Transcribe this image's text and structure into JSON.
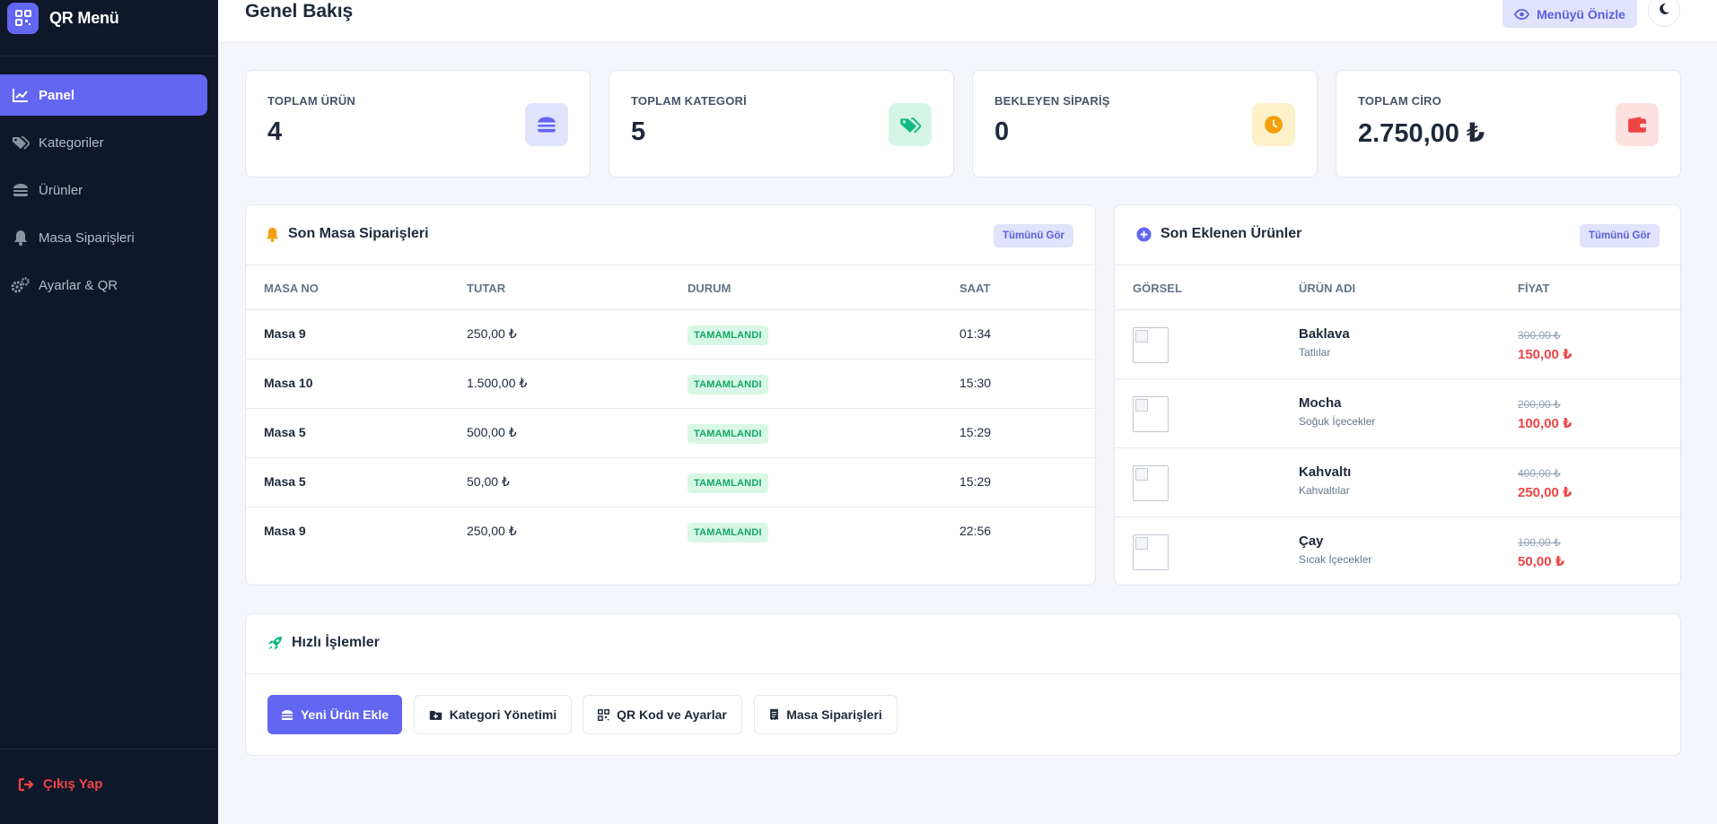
{
  "brand": {
    "name": "QR Menü"
  },
  "sidebar": {
    "items": [
      {
        "label": "Panel",
        "icon": "chart-line-icon",
        "active": true
      },
      {
        "label": "Kategoriler",
        "icon": "tags-icon"
      },
      {
        "label": "Ürünler",
        "icon": "burger-icon"
      },
      {
        "label": "Masa Siparişleri",
        "icon": "bell-icon"
      },
      {
        "label": "Ayarlar & QR",
        "icon": "cogs-icon"
      }
    ],
    "logout_label": "Çıkış Yap"
  },
  "header": {
    "title": "Genel Bakış",
    "preview_label": "Menüyü Önizle"
  },
  "stats": [
    {
      "label": "TOPLAM ÜRÜN",
      "value": "4",
      "icon": "burger-icon",
      "color": "#6366f1",
      "bg": "#e0e3fb"
    },
    {
      "label": "TOPLAM KATEGORİ",
      "value": "5",
      "icon": "tags-icon",
      "color": "#10b981",
      "bg": "#d5f6e6"
    },
    {
      "label": "BEKLEYEN SİPARİŞ",
      "value": "0",
      "icon": "clock-icon",
      "color": "#f59e0b",
      "bg": "#fdf1c9"
    },
    {
      "label": "TOPLAM CİRO",
      "value": "2.750,00 ₺",
      "icon": "wallet-icon",
      "color": "#ef4444",
      "bg": "#fde0e0"
    }
  ],
  "orders": {
    "title": "Son Masa Siparişleri",
    "see_all": "Tümünü Gör",
    "columns": [
      "MASA NO",
      "TUTAR",
      "DURUM",
      "SAAT"
    ],
    "rows": [
      {
        "table": "Masa 9",
        "amount": "250,00 ₺",
        "status": "TAMAMLANDI",
        "time": "01:34"
      },
      {
        "table": "Masa 10",
        "amount": "1.500,00 ₺",
        "status": "TAMAMLANDI",
        "time": "15:30"
      },
      {
        "table": "Masa 5",
        "amount": "500,00 ₺",
        "status": "TAMAMLANDI",
        "time": "15:29"
      },
      {
        "table": "Masa 5",
        "amount": "50,00 ₺",
        "status": "TAMAMLANDI",
        "time": "15:29"
      },
      {
        "table": "Masa 9",
        "amount": "250,00 ₺",
        "status": "TAMAMLANDI",
        "time": "22:56"
      }
    ]
  },
  "products": {
    "title": "Son Eklenen Ürünler",
    "see_all": "Tümünü Gör",
    "columns": [
      "GÖRSEL",
      "ÜRÜN ADI",
      "FİYAT"
    ],
    "rows": [
      {
        "name": "Baklava",
        "category": "Tatlılar",
        "old_price": "300,00 ₺",
        "price": "150,00 ₺"
      },
      {
        "name": "Mocha",
        "category": "Soğuk İçecekler",
        "old_price": "200,00 ₺",
        "price": "100,00 ₺"
      },
      {
        "name": "Kahvaltı",
        "category": "Kahvaltılar",
        "old_price": "400,00 ₺",
        "price": "250,00 ₺"
      },
      {
        "name": "Çay",
        "category": "Sıcak İçecekler",
        "old_price": "100,00 ₺",
        "price": "50,00 ₺"
      }
    ]
  },
  "quick": {
    "title": "Hızlı İşlemler",
    "buttons": [
      {
        "label": "Yeni Ürün Ekle",
        "icon": "burger-icon",
        "primary": true
      },
      {
        "label": "Kategori Yönetimi",
        "icon": "folder-plus-icon"
      },
      {
        "label": "QR Kod ve Ayarlar",
        "icon": "qrcode-icon"
      },
      {
        "label": "Masa Siparişleri",
        "icon": "receipt-icon"
      }
    ]
  },
  "colors": {
    "accent": "#6366f1",
    "sidebar": "#0f172a",
    "success": "#10b981",
    "danger": "#ef4444",
    "warning": "#f59e0b"
  }
}
